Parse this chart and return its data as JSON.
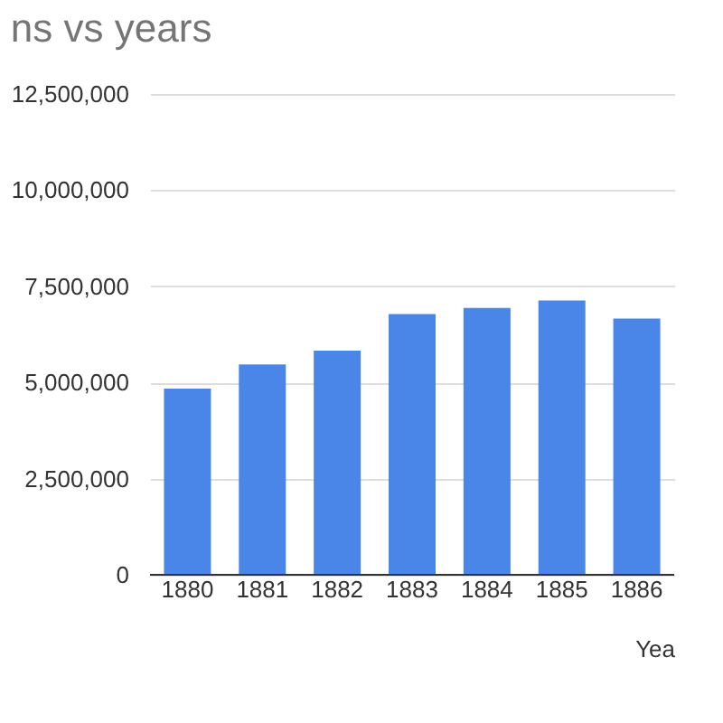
{
  "chart_data": {
    "type": "bar",
    "title": "ns vs years",
    "xlabel": "Yea",
    "categories": [
      "1880",
      "1881",
      "1882",
      "1883",
      "1884",
      "1885",
      "1886"
    ],
    "values": [
      4840000,
      5470000,
      5830000,
      6780000,
      6940000,
      7130000,
      6660000
    ],
    "color": "#4a86e8",
    "ylim": [
      0,
      12500000
    ],
    "yticks": [
      0,
      {
        "value": 2500000,
        "label": "2,500,000"
      },
      {
        "value": 5000000,
        "label": "5,000,000"
      },
      {
        "value": 7500000,
        "label": "7,500,000"
      },
      {
        "value": 10000000,
        "label": "10,000,000"
      },
      {
        "value": 12500000,
        "label": "12,500,000"
      }
    ],
    "grid": "y"
  }
}
